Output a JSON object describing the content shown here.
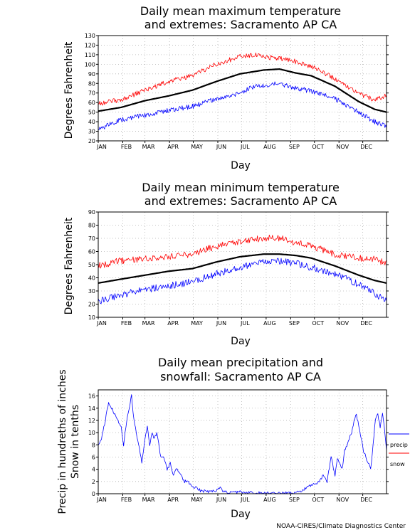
{
  "credit": "NOAA-CIRES/Climate Diagnostics Center",
  "colors": {
    "extreme_high": "#ff0000",
    "mean": "#000000",
    "extreme_low": "#0000ff",
    "precip": "#0000ff",
    "snow": "#ff0000",
    "grid": "#b4b4b4"
  },
  "chart_data": [
    {
      "type": "line",
      "title": [
        "Daily mean maximum temperature",
        "and extremes: Sacramento AP CA"
      ],
      "xlabel": "Day",
      "ylabel": "Degrees Fahrenheit",
      "ylim": [
        20,
        130
      ],
      "yticks": [
        20,
        30,
        40,
        50,
        60,
        70,
        80,
        90,
        100,
        110,
        120,
        130
      ],
      "month_labels": [
        "JAN",
        "FEB",
        "MAR",
        "APR",
        "MAY",
        "JUN",
        "JUL",
        "AUG",
        "SEP",
        "OCT",
        "NOV",
        "DEC"
      ],
      "grid": true,
      "series": [
        {
          "key": "record_high",
          "color": "#ff0000",
          "day": [
            1,
            30,
            60,
            90,
            120,
            150,
            180,
            195,
            210,
            230,
            250,
            270,
            300,
            330,
            350,
            365
          ],
          "value": [
            59,
            63,
            73,
            82,
            88,
            100,
            108,
            110,
            108,
            106,
            103,
            98,
            85,
            70,
            62,
            68
          ]
        },
        {
          "key": "mean",
          "color": "#000000",
          "day": [
            1,
            30,
            60,
            90,
            120,
            150,
            180,
            195,
            210,
            230,
            250,
            270,
            300,
            330,
            350,
            365
          ],
          "value": [
            51,
            55,
            62,
            67,
            73,
            82,
            90,
            92,
            94,
            95,
            91,
            88,
            77,
            61,
            53,
            50
          ]
        },
        {
          "key": "record_low",
          "color": "#0000ff",
          "day": [
            1,
            30,
            60,
            90,
            120,
            150,
            180,
            195,
            210,
            230,
            250,
            270,
            300,
            330,
            350,
            365
          ],
          "value": [
            32,
            42,
            47,
            52,
            56,
            64,
            70,
            76,
            78,
            80,
            75,
            72,
            64,
            50,
            40,
            35
          ]
        }
      ]
    },
    {
      "type": "line",
      "title": [
        "Daily mean minimum temperature",
        "and extremes: Sacramento AP CA"
      ],
      "xlabel": "Day",
      "ylabel": "Degrees Fahrenheit",
      "ylim": [
        10,
        90
      ],
      "yticks": [
        10,
        20,
        30,
        40,
        50,
        60,
        70,
        80,
        90
      ],
      "month_labels": [
        "JAN",
        "FEB",
        "MAR",
        "APR",
        "MAY",
        "JUN",
        "JUL",
        "AUG",
        "SEP",
        "OCT",
        "NOV",
        "DEC"
      ],
      "grid": true,
      "series": [
        {
          "key": "record_high",
          "color": "#ff0000",
          "day": [
            1,
            30,
            60,
            90,
            120,
            150,
            180,
            210,
            230,
            250,
            270,
            300,
            330,
            350,
            365
          ],
          "value": [
            49,
            53,
            55,
            56,
            58,
            64,
            68,
            70,
            70,
            67,
            64,
            58,
            55,
            54,
            51
          ]
        },
        {
          "key": "mean",
          "color": "#000000",
          "day": [
            1,
            30,
            60,
            90,
            120,
            150,
            180,
            210,
            230,
            250,
            270,
            300,
            330,
            350,
            365
          ],
          "value": [
            36,
            39,
            42,
            45,
            47,
            52,
            56,
            58,
            58,
            57,
            55,
            49,
            42,
            38,
            36
          ]
        },
        {
          "key": "record_low",
          "color": "#0000ff",
          "day": [
            1,
            30,
            60,
            90,
            120,
            150,
            180,
            210,
            230,
            250,
            270,
            300,
            330,
            350,
            365
          ],
          "value": [
            22,
            27,
            31,
            34,
            37,
            43,
            48,
            52,
            53,
            51,
            48,
            43,
            35,
            28,
            22
          ]
        }
      ]
    },
    {
      "type": "line",
      "title": [
        "Daily mean precipitation and",
        "snowfall: Sacramento AP CA"
      ],
      "xlabel": "Day",
      "ylabel": [
        "Precip in hundreths of inches",
        "Snow in tenths"
      ],
      "ylim": [
        0,
        17
      ],
      "yticks": [
        0,
        2,
        4,
        6,
        8,
        10,
        12,
        14,
        16
      ],
      "month_labels": [
        "JAN",
        "FEB",
        "MAR",
        "APR",
        "MAY",
        "JUN",
        "JUL",
        "AUG",
        "SEP",
        "OCT",
        "NOV",
        "DEC"
      ],
      "grid": true,
      "legend": {
        "placement": "right",
        "entries": [
          {
            "label": "precip",
            "color": "#0000ff"
          },
          {
            "label": "snow",
            "color": "#ff0000"
          }
        ]
      },
      "series": [
        {
          "key": "precip",
          "color": "#0000ff",
          "day": [
            1,
            5,
            10,
            14,
            18,
            22,
            26,
            30,
            33,
            37,
            40,
            43,
            46,
            49,
            52,
            56,
            60,
            63,
            66,
            69,
            72,
            75,
            80,
            84,
            88,
            92,
            96,
            100,
            105,
            110,
            115,
            120,
            125,
            130,
            140,
            150,
            155,
            160,
            170,
            175,
            180,
            190,
            200,
            215,
            225,
            235,
            245,
            255,
            265,
            270,
            275,
            280,
            285,
            290,
            295,
            300,
            303,
            306,
            309,
            312,
            315,
            318,
            321,
            324,
            327,
            330,
            333,
            336,
            339,
            342,
            345,
            348,
            351,
            354,
            357,
            360,
            363,
            365
          ],
          "value": [
            8,
            9,
            12,
            15,
            14,
            13,
            12,
            11,
            8,
            12,
            14,
            16,
            12,
            10,
            8,
            5,
            9,
            11,
            8,
            10,
            9,
            10,
            6,
            6,
            4,
            5,
            3,
            4,
            3,
            2,
            2,
            1,
            1,
            0.5,
            0.3,
            0.5,
            1,
            0.3,
            0.3,
            0.2,
            0.3,
            0.2,
            0.1,
            0.1,
            0.1,
            0.2,
            0.1,
            0.3,
            1,
            1.5,
            1.5,
            2,
            3,
            2,
            6,
            3,
            6,
            5,
            4,
            7,
            8,
            9,
            10,
            12,
            13,
            11,
            9,
            7,
            6,
            5,
            4,
            8,
            12,
            13,
            11,
            13,
            10,
            7
          ]
        },
        {
          "key": "snow",
          "color": "#ff0000",
          "day": [
            1,
            365
          ],
          "value": [
            0,
            0
          ]
        }
      ]
    }
  ]
}
